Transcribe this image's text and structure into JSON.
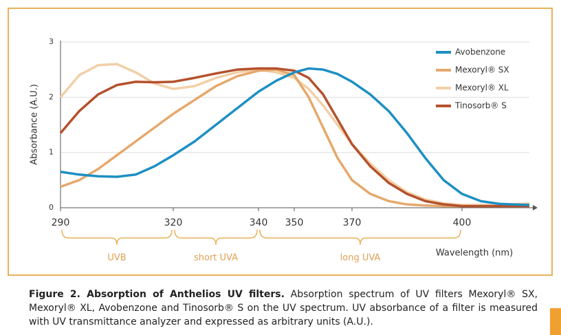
{
  "chart_data": {
    "type": "line",
    "y_label": "Absorbance (A.U.)",
    "x_label": "Wavelength (nm)",
    "x": [
      290,
      295,
      300,
      305,
      310,
      315,
      320,
      325,
      330,
      335,
      340,
      345,
      350,
      355,
      360,
      365,
      370,
      375,
      380,
      385,
      390,
      395,
      400,
      405,
      410,
      418
    ],
    "xlim": [
      290,
      418
    ],
    "xticks": [
      290,
      320,
      340,
      350,
      370,
      400
    ],
    "ylim": [
      0,
      3
    ],
    "yticks": [
      0,
      1,
      2,
      3
    ],
    "grid": true,
    "legend": "upper right",
    "series": [
      {
        "name": "Avobenzone",
        "color": "#1d8fc3",
        "values": [
          0.65,
          0.6,
          0.57,
          0.56,
          0.6,
          0.75,
          0.95,
          1.2,
          1.5,
          1.8,
          2.1,
          2.3,
          2.45,
          2.52,
          2.5,
          2.42,
          2.28,
          2.05,
          1.75,
          1.35,
          0.9,
          0.5,
          0.25,
          0.12,
          0.07,
          0.05
        ]
      },
      {
        "name": "Mexoryl® SX",
        "color": "#e6a86c",
        "values": [
          0.38,
          0.5,
          0.7,
          0.95,
          1.2,
          1.45,
          1.7,
          1.95,
          2.2,
          2.38,
          2.48,
          2.5,
          2.4,
          2.0,
          1.45,
          0.9,
          0.5,
          0.25,
          0.12,
          0.06,
          0.04,
          0.03,
          0.03,
          0.03,
          0.03,
          0.05
        ]
      },
      {
        "name": "Mexoryl® XL",
        "color": "#f2cfa6",
        "values": [
          2.0,
          2.4,
          2.58,
          2.6,
          2.45,
          2.25,
          2.15,
          2.2,
          2.35,
          2.45,
          2.5,
          2.45,
          2.35,
          2.15,
          1.85,
          1.5,
          1.15,
          0.8,
          0.5,
          0.28,
          0.15,
          0.08,
          0.05,
          0.05,
          0.05,
          0.08
        ]
      },
      {
        "name": "Tinosorb® S",
        "color": "#b4512c",
        "values": [
          1.35,
          1.75,
          2.05,
          2.22,
          2.28,
          2.27,
          2.28,
          2.35,
          2.43,
          2.5,
          2.52,
          2.52,
          2.48,
          2.35,
          2.05,
          1.6,
          1.15,
          0.75,
          0.45,
          0.25,
          0.12,
          0.06,
          0.03,
          0.03,
          0.03,
          0.03
        ]
      }
    ],
    "bands": [
      {
        "label": "UVB",
        "from": 290,
        "to": 320
      },
      {
        "label": "short UVA",
        "from": 320,
        "to": 340
      },
      {
        "label": "long UVA",
        "from": 340,
        "to": 400
      }
    ],
    "caption": {
      "bold": "Figure 2. Absorption of Anthelios UV filters.",
      "text": "Absorption spectrum of UV filters Mexoryl® SX, Mexoryl® XL, Avobenzone and Tinosorb® S on the UV spectrum. UV absorbance of a filter is measured with UV transmittance analyzer and expressed as arbitrary units (A.U.)."
    }
  }
}
